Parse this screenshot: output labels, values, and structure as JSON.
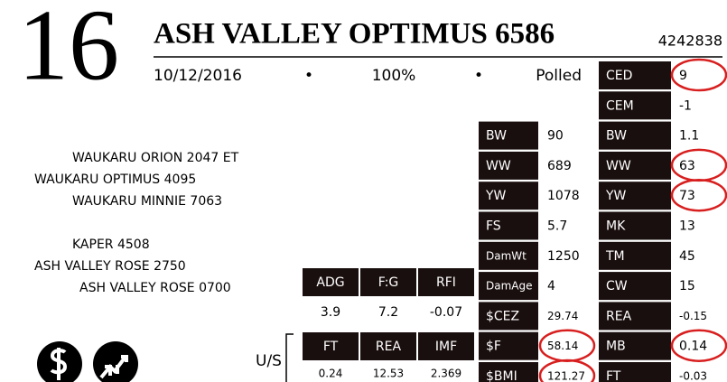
{
  "header": {
    "lot": "16",
    "name": "ASH VALLEY OPTIMUS 6586",
    "registration": "4242838",
    "birth_date": "10/12/2016",
    "separator": "•",
    "percent": "100%",
    "horn_status": "Polled"
  },
  "pedigree": {
    "sire_side": [
      "WAUKARU ORION 2047 ET",
      "WAUKARU OPTIMUS 4095",
      "WAUKARU MINNIE 7063"
    ],
    "dam_side": [
      "KAPER 4508",
      "ASH VALLEY ROSE 2750",
      "ASH VALLEY ROSE 0700"
    ]
  },
  "performance": {
    "labels": [
      "ADG",
      "F:G",
      "RFI"
    ],
    "values": [
      "3.9",
      "7.2",
      "-0.07"
    ]
  },
  "ultrasound": {
    "title": "U/S",
    "labels": [
      "FT",
      "REA",
      "IMF"
    ],
    "values": [
      "0.24",
      "12.53",
      "2.369"
    ]
  },
  "actuals": [
    {
      "label": "BW",
      "value": "90"
    },
    {
      "label": "WW",
      "value": "689"
    },
    {
      "label": "YW",
      "value": "1078"
    },
    {
      "label": "FS",
      "value": "5.7"
    },
    {
      "label": "DamWt",
      "value": "1250"
    },
    {
      "label": "DamAge",
      "value": "4"
    },
    {
      "label": "$CEZ",
      "value": "29.74"
    },
    {
      "label": "$F",
      "value": "58.14",
      "circled": true
    },
    {
      "label": "$BMI",
      "value": "121.27",
      "circled": true
    }
  ],
  "epds": [
    {
      "label": "CED",
      "value": "9",
      "circled": true
    },
    {
      "label": "CEM",
      "value": "-1"
    },
    {
      "label": "BW",
      "value": "1.1"
    },
    {
      "label": "WW",
      "value": "63",
      "circled": true
    },
    {
      "label": "YW",
      "value": "73",
      "circled": true
    },
    {
      "label": "MK",
      "value": "13"
    },
    {
      "label": "TM",
      "value": "45"
    },
    {
      "label": "CW",
      "value": "15"
    },
    {
      "label": "REA",
      "value": "-0.15"
    },
    {
      "label": "MB",
      "value": "0.14",
      "circled": true
    },
    {
      "label": "FT",
      "value": "-0.03"
    }
  ]
}
